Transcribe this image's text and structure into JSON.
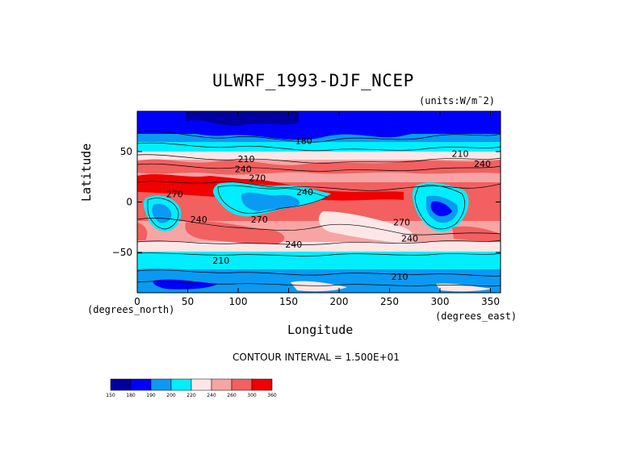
{
  "chart_data": {
    "type": "heatmap",
    "title": "ULWRF_1993-DJF_NCEP",
    "units_label": "(units:W/m¯2)",
    "xlabel": "Longitude",
    "ylabel": "Latitude",
    "x_unit_label": "(degrees_east)",
    "y_unit_label": "(degrees_north)",
    "xlim": [
      0,
      360
    ],
    "ylim": [
      -90,
      90
    ],
    "x_ticks": [
      0,
      50,
      100,
      150,
      200,
      250,
      300,
      350
    ],
    "y_ticks": [
      -50,
      0,
      50
    ],
    "contour_interval_text": "CONTOUR INTERVAL = 1.500E+01",
    "contour_labels": [
      {
        "x": 165,
        "y": 61,
        "text": "180"
      },
      {
        "x": 108,
        "y": 43,
        "text": "210"
      },
      {
        "x": 320,
        "y": 48,
        "text": "210"
      },
      {
        "x": 342,
        "y": 38,
        "text": "240"
      },
      {
        "x": 105,
        "y": 33,
        "text": "240"
      },
      {
        "x": 119,
        "y": 24,
        "text": "270"
      },
      {
        "x": 37,
        "y": 8,
        "text": "270"
      },
      {
        "x": 166,
        "y": 10,
        "text": "240"
      },
      {
        "x": 61,
        "y": -17,
        "text": "240"
      },
      {
        "x": 121,
        "y": -17,
        "text": "270"
      },
      {
        "x": 262,
        "y": -20,
        "text": "270"
      },
      {
        "x": 270,
        "y": -36,
        "text": "240"
      },
      {
        "x": 155,
        "y": -42,
        "text": "240"
      },
      {
        "x": 83,
        "y": -58,
        "text": "210"
      },
      {
        "x": 260,
        "y": -74,
        "text": "210"
      }
    ],
    "colorbar": {
      "levels": [
        150,
        180,
        190,
        200,
        220,
        240,
        260,
        300,
        360
      ],
      "colors": [
        "#0000a0",
        "#0000ff",
        "#0a9af3",
        "#00eeff",
        "#ffe6e6",
        "#f7a4a4",
        "#f26060",
        "#f00000"
      ]
    }
  }
}
